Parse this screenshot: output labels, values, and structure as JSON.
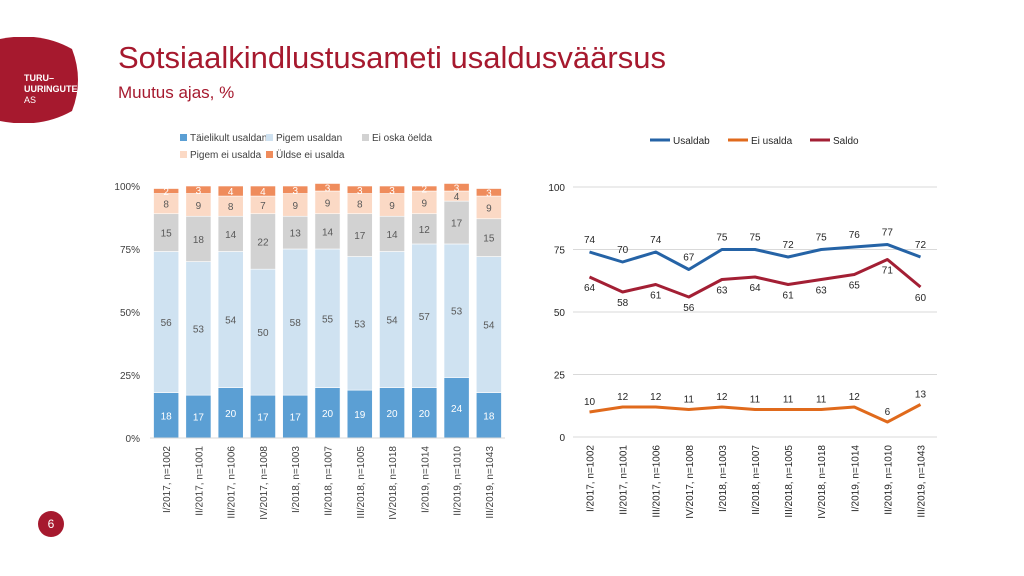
{
  "header": {
    "title": "Sotsiaalkindlustusameti usaldusväärsus",
    "subtitle": "Muutus ajas, %",
    "page_number": "6"
  },
  "logo": {
    "line1": "TURU–",
    "line2": "UURINGUTE",
    "line3": "AS"
  },
  "colors": {
    "brand": "#a6192e"
  },
  "chart_data": [
    {
      "type": "bar",
      "stacked": true,
      "categories": [
        "I/2017, n=1002",
        "II/2017, n=1001",
        "III/2017, n=1006",
        "IV/2017, n=1008",
        "I/2018, n=1003",
        "II/2018, n=1007",
        "III/2018, n=1005",
        "IV/2018, n=1018",
        "I/2019, n=1014",
        "II/2019, n=1010",
        "III/2019, n=1043"
      ],
      "series": [
        {
          "name": "Täielikult usaldan",
          "color": "#5b9fd4",
          "label_color": "#ffffff",
          "values": [
            18,
            17,
            20,
            17,
            17,
            20,
            19,
            20,
            20,
            24,
            18
          ]
        },
        {
          "name": "Pigem usaldan",
          "color": "#cfe2f1",
          "label_color": "#595959",
          "values": [
            56,
            53,
            54,
            50,
            58,
            55,
            53,
            54,
            57,
            53,
            54
          ]
        },
        {
          "name": "Ei oska öelda",
          "color": "#d2d2d2",
          "label_color": "#595959",
          "values": [
            15,
            18,
            14,
            22,
            13,
            14,
            17,
            14,
            12,
            17,
            15
          ]
        },
        {
          "name": "Pigem ei usalda",
          "color": "#fbd9c5",
          "label_color": "#595959",
          "values": [
            8,
            9,
            8,
            7,
            9,
            9,
            8,
            9,
            9,
            4,
            9
          ]
        },
        {
          "name": "Üldse ei usalda",
          "color": "#ef8c5c",
          "label_color": "#ffffff",
          "values": [
            2,
            3,
            4,
            4,
            3,
            3,
            3,
            3,
            2,
            3,
            3
          ]
        }
      ],
      "y_ticks": [
        "0%",
        "25%",
        "50%",
        "75%",
        "100%"
      ],
      "ylim": [
        0,
        100
      ],
      "legend": "top"
    },
    {
      "type": "line",
      "categories": [
        "I/2017, n=1002",
        "II/2017, n=1001",
        "III/2017, n=1006",
        "IV/2017, n=1008",
        "I/2018, n=1003",
        "II/2018, n=1007",
        "III/2018, n=1005",
        "IV/2018, n=1018",
        "I/2019, n=1014",
        "II/2019, n=1010",
        "III/2019, n=1043"
      ],
      "series": [
        {
          "name": "Usaldab",
          "color": "#2563a6",
          "values": [
            74,
            70,
            74,
            67,
            75,
            75,
            72,
            75,
            76,
            77,
            72
          ]
        },
        {
          "name": "Ei usalda",
          "color": "#e06a1c",
          "values": [
            10,
            12,
            12,
            11,
            12,
            11,
            11,
            11,
            12,
            6,
            13
          ]
        },
        {
          "name": "Saldo",
          "color": "#a31f34",
          "values": [
            64,
            58,
            61,
            56,
            63,
            64,
            61,
            63,
            65,
            71,
            60
          ]
        }
      ],
      "y_ticks": [
        "0",
        "25",
        "50",
        "75",
        "100"
      ],
      "ylim": [
        0,
        100
      ],
      "legend": "top"
    }
  ]
}
